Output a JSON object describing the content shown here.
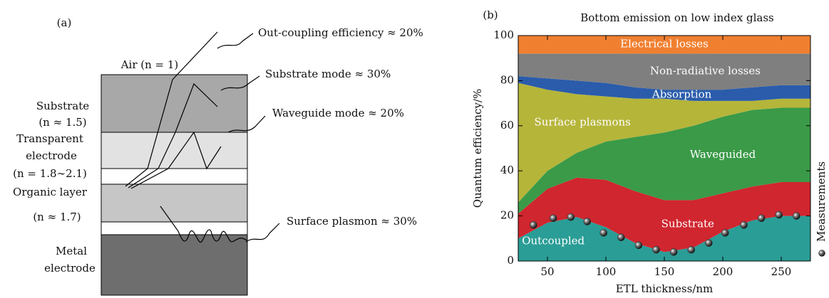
{
  "diagram": {
    "panel": "(a)",
    "air": "Air (n = 1)",
    "layers": [
      {
        "label": [
          "Substrate",
          "(n ≈ 1.5)"
        ]
      },
      {
        "label": [
          "Transparent",
          "electrode",
          "(n = 1.8∼2.1)"
        ]
      },
      {
        "label": [
          "Organic layer",
          "(n ≈ 1.7)"
        ]
      },
      {
        "label": [
          "Metal",
          "electrode"
        ]
      }
    ],
    "modes": [
      "Out-coupling efficiency ≈ 20%",
      "Substrate mode ≈ 30%",
      "Waveguide mode ≈ 20%",
      "Surface plasmon ≈ 30%"
    ]
  },
  "chart_data": {
    "type": "area",
    "stacked": true,
    "panel": "(b)",
    "title": "Bottom emission on low index glass",
    "x_label": "ETL thickness/nm",
    "y_label": "Quantum efficiency/%",
    "x": [
      25,
      50,
      75,
      100,
      125,
      150,
      175,
      200,
      225,
      250,
      275
    ],
    "series": [
      {
        "name": "Outcoupled",
        "color": "#2a9d96",
        "values": [
          10,
          17,
          19.5,
          15,
          8,
          4,
          6,
          13,
          18,
          20,
          20
        ]
      },
      {
        "name": "Substrate",
        "color": "#d0262f",
        "values": [
          11,
          15,
          17.5,
          21,
          23,
          23,
          21,
          17,
          15,
          15,
          15
        ]
      },
      {
        "name": "Waveguided",
        "color": "#3a9a48",
        "values": [
          5,
          8,
          11,
          17,
          24,
          30,
          33,
          34,
          34,
          33,
          33
        ]
      },
      {
        "name": "Surface plasmons",
        "color": "#b5b53a",
        "values": [
          53,
          36,
          26,
          20,
          17,
          15,
          11,
          7,
          4,
          4,
          4
        ]
      },
      {
        "name": "Absorption",
        "color": "#2a5cab",
        "values": [
          3,
          5,
          6,
          6,
          5,
          4,
          5,
          5,
          6,
          6,
          6
        ]
      },
      {
        "name": "Non-radiative losses",
        "color": "#7f7f7f",
        "values": [
          10,
          11,
          12,
          13,
          15,
          16,
          16,
          16,
          15,
          14,
          14
        ]
      },
      {
        "name": "Electrical losses",
        "color": "#f08030",
        "values": [
          8,
          8,
          8,
          8,
          8,
          8,
          8,
          8,
          8,
          8,
          8
        ]
      }
    ],
    "measurements": {
      "name": "Measurements",
      "color": "#222222",
      "x": [
        38,
        55,
        70,
        84,
        98,
        113,
        128,
        143,
        158,
        173,
        188,
        202,
        218,
        233,
        248,
        263
      ],
      "values": [
        16,
        19,
        19.5,
        17.5,
        12.5,
        10.5,
        7,
        5,
        4,
        5,
        8,
        12.5,
        16,
        19,
        20.5,
        20
      ]
    },
    "xlim": [
      25,
      275
    ],
    "ylim": [
      0,
      100
    ],
    "xticks": [
      50,
      100,
      150,
      200,
      250
    ],
    "yticks": [
      0,
      20,
      40,
      60,
      80,
      100
    ]
  }
}
